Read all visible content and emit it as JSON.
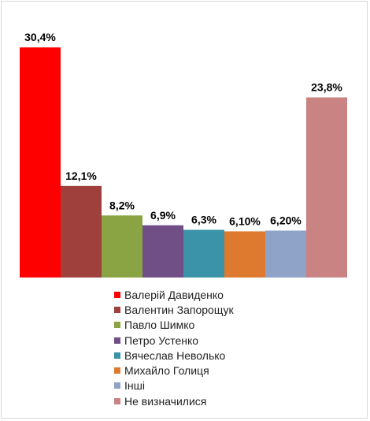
{
  "chart_data": {
    "type": "bar",
    "title": "",
    "xlabel": "",
    "ylabel": "",
    "ylim": [
      0,
      32
    ],
    "grid": false,
    "legend_position": "bottom",
    "categories": [
      "Валерій Давиденко",
      "Валентин Запорощук",
      "Павло Шимко",
      "Петро Устенко",
      "Вячеслав Неволько",
      "Михайло Голиця",
      "Інші",
      "Не визначилися"
    ],
    "values": [
      30.4,
      12.1,
      8.2,
      6.9,
      6.3,
      6.1,
      6.2,
      23.8
    ],
    "data_labels": [
      "30,4%",
      "12,1%",
      "8,2%",
      "6,9%",
      "6,3%",
      "6,10%",
      "6,20%",
      "23,8%"
    ],
    "colors": [
      "#ff0000",
      "#a0403c",
      "#8aa444",
      "#6f4f86",
      "#3a93a8",
      "#dd7a30",
      "#8fa3c8",
      "#c98383"
    ]
  }
}
